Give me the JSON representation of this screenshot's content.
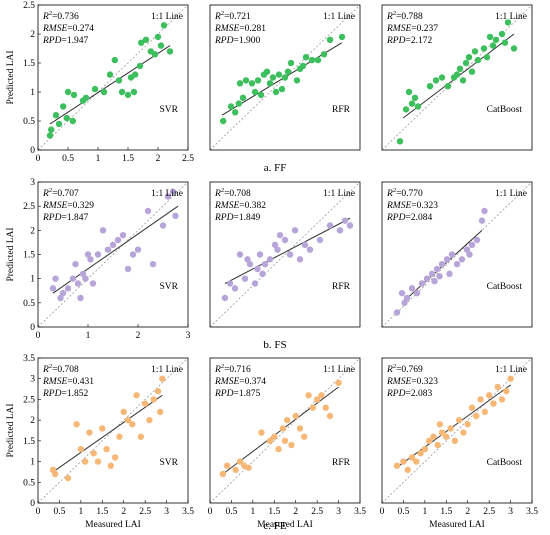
{
  "figure": {
    "row_captions": [
      "a. FF",
      "b. FS",
      "c. FE"
    ],
    "ylabel": "Predicted LAI",
    "xlabel": "Measured LAI",
    "line_label": "1:1 Line"
  },
  "colors": {
    "FF": "#3cbf5c",
    "FS": "#b7a4d8",
    "FE": "#f7b877",
    "fit": "#333333",
    "diag": "#9a9a9a"
  },
  "chart_data": [
    {
      "type": "scatter",
      "row": "FF",
      "model": "SVR",
      "r2": "0.736",
      "rmse": "0.274",
      "rpd": "1.947",
      "xlim": [
        0,
        2.5
      ],
      "ylim": [
        0,
        2.5
      ],
      "xticks": [
        0,
        0.5,
        1,
        1.5,
        2,
        2.5
      ],
      "yticks": [
        0,
        0.5,
        1,
        1.5,
        2,
        2.5
      ],
      "fit": [
        [
          0.2,
          0.45
        ],
        [
          2.2,
          1.8
        ]
      ],
      "x": [
        0.2,
        0.22,
        0.3,
        0.35,
        0.42,
        0.48,
        0.5,
        0.58,
        0.6,
        0.75,
        0.8,
        0.95,
        1.1,
        1.2,
        1.28,
        1.35,
        1.4,
        1.5,
        1.55,
        1.6,
        1.62,
        1.7,
        1.72,
        1.8,
        1.88,
        1.95,
        2.0,
        2.05,
        2.1,
        2.2
      ],
      "y": [
        0.25,
        0.35,
        0.6,
        0.45,
        0.75,
        0.55,
        1.0,
        0.5,
        0.95,
        0.85,
        0.9,
        1.05,
        1.0,
        1.3,
        1.55,
        1.2,
        1.0,
        0.95,
        1.25,
        1.0,
        1.3,
        1.45,
        1.85,
        1.9,
        1.7,
        1.65,
        1.95,
        1.8,
        2.15,
        1.7
      ]
    },
    {
      "type": "scatter",
      "row": "FF",
      "model": "RFR",
      "r2": "0.721",
      "rmse": "0.281",
      "rpd": "1.900",
      "xlim": [
        0,
        2.5
      ],
      "ylim": [
        0,
        2.5
      ],
      "xticks": [],
      "yticks": [],
      "fit": [
        [
          0.2,
          0.6
        ],
        [
          2.2,
          1.85
        ]
      ],
      "x": [
        0.22,
        0.35,
        0.42,
        0.48,
        0.5,
        0.55,
        0.6,
        0.7,
        0.75,
        0.8,
        0.85,
        0.9,
        0.95,
        1.0,
        1.05,
        1.1,
        1.15,
        1.2,
        1.25,
        1.3,
        1.35,
        1.45,
        1.5,
        1.55,
        1.6,
        1.7,
        1.8,
        1.9,
        2.0,
        2.2
      ],
      "y": [
        0.5,
        0.75,
        0.65,
        0.8,
        1.15,
        0.9,
        1.2,
        1.15,
        1.0,
        1.2,
        0.95,
        1.3,
        1.35,
        1.15,
        1.25,
        1.0,
        1.3,
        1.05,
        1.25,
        1.35,
        1.5,
        1.2,
        1.4,
        1.45,
        1.6,
        1.55,
        1.55,
        1.65,
        1.9,
        1.95
      ]
    },
    {
      "type": "scatter",
      "row": "FF",
      "model": "CatBoost",
      "r2": "0.788",
      "rmse": "0.237",
      "rpd": "2.172",
      "xlim": [
        0,
        2.5
      ],
      "ylim": [
        0,
        2.5
      ],
      "xticks": [],
      "yticks": [],
      "fit": [
        [
          0.35,
          0.55
        ],
        [
          2.2,
          2.0
        ]
      ],
      "x": [
        0.3,
        0.4,
        0.45,
        0.5,
        0.55,
        0.6,
        0.8,
        0.9,
        1.0,
        1.1,
        1.2,
        1.25,
        1.3,
        1.35,
        1.4,
        1.45,
        1.5,
        1.55,
        1.6,
        1.7,
        1.75,
        1.8,
        1.85,
        1.9,
        2.0,
        2.05,
        2.1,
        2.2
      ],
      "y": [
        0.15,
        0.7,
        1.0,
        0.8,
        0.9,
        0.75,
        1.1,
        1.2,
        1.25,
        1.1,
        1.25,
        1.3,
        1.4,
        1.2,
        1.5,
        1.6,
        1.35,
        1.7,
        1.55,
        1.75,
        1.6,
        1.95,
        1.8,
        1.9,
        2.0,
        1.85,
        2.2,
        1.75
      ]
    },
    {
      "type": "scatter",
      "row": "FS",
      "model": "SVR",
      "r2": "0.707",
      "rmse": "0.329",
      "rpd": "1.847",
      "xlim": [
        0,
        3
      ],
      "ylim": [
        0,
        3
      ],
      "xticks": [
        0,
        1,
        2,
        3
      ],
      "yticks": [
        0,
        0.5,
        1,
        1.5,
        2,
        2.5,
        3
      ],
      "fit": [
        [
          0.3,
          0.7
        ],
        [
          2.8,
          2.5
        ]
      ],
      "x": [
        0.3,
        0.35,
        0.45,
        0.5,
        0.6,
        0.7,
        0.75,
        0.8,
        0.85,
        0.9,
        0.95,
        1.0,
        1.05,
        1.1,
        1.2,
        1.3,
        1.4,
        1.5,
        1.6,
        1.7,
        1.8,
        1.9,
        2.0,
        2.2,
        2.3,
        2.5,
        2.6,
        2.7,
        2.75
      ],
      "y": [
        0.8,
        1.0,
        0.6,
        0.7,
        0.8,
        1.0,
        1.3,
        0.9,
        0.6,
        1.1,
        1.0,
        1.5,
        1.4,
        0.9,
        1.5,
        2.0,
        1.6,
        1.7,
        1.8,
        1.9,
        1.2,
        1.5,
        1.6,
        2.4,
        1.3,
        2.1,
        2.7,
        2.8,
        2.3
      ]
    },
    {
      "type": "scatter",
      "row": "FS",
      "model": "RFR",
      "r2": "0.708",
      "rmse": "0.382",
      "rpd": "1.849",
      "xlim": [
        0,
        3
      ],
      "ylim": [
        0,
        3
      ],
      "xticks": [],
      "yticks": [],
      "fit": [
        [
          0.3,
          0.9
        ],
        [
          2.8,
          2.25
        ]
      ],
      "x": [
        0.3,
        0.4,
        0.5,
        0.6,
        0.7,
        0.75,
        0.8,
        0.9,
        0.95,
        1.0,
        1.05,
        1.1,
        1.2,
        1.3,
        1.35,
        1.4,
        1.5,
        1.6,
        1.7,
        1.8,
        1.9,
        2.0,
        2.2,
        2.4,
        2.6,
        2.7,
        2.8
      ],
      "y": [
        0.6,
        0.9,
        0.8,
        1.5,
        1.0,
        1.4,
        1.3,
        0.9,
        1.2,
        1.5,
        1.1,
        1.3,
        1.4,
        1.7,
        1.6,
        1.9,
        1.8,
        1.5,
        2.0,
        1.4,
        1.7,
        1.6,
        1.8,
        2.1,
        2.0,
        2.2,
        2.1
      ]
    },
    {
      "type": "scatter",
      "row": "FS",
      "model": "CatBoost",
      "r2": "0.770",
      "rmse": "0.323",
      "rpd": "2.084",
      "xlim": [
        0,
        3
      ],
      "ylim": [
        0,
        3
      ],
      "xticks": [],
      "yticks": [],
      "fit": [
        [
          0.4,
          0.5
        ],
        [
          2.0,
          2.0
        ]
      ],
      "x": [
        0.3,
        0.4,
        0.45,
        0.5,
        0.6,
        0.7,
        0.8,
        0.9,
        1.0,
        1.05,
        1.1,
        1.15,
        1.2,
        1.3,
        1.35,
        1.4,
        1.5,
        1.6,
        1.7,
        1.75,
        1.8,
        1.9,
        2.0,
        2.05
      ],
      "y": [
        0.3,
        0.7,
        0.5,
        0.6,
        0.8,
        0.7,
        0.9,
        1.0,
        1.1,
        0.95,
        1.2,
        1.05,
        1.3,
        1.4,
        1.1,
        1.5,
        1.3,
        1.4,
        1.6,
        1.5,
        1.7,
        1.8,
        2.2,
        2.4
      ]
    },
    {
      "type": "scatter",
      "row": "FE",
      "model": "SVR",
      "r2": "0.708",
      "rmse": "0.431",
      "rpd": "1.852",
      "xlim": [
        0,
        3.5
      ],
      "ylim": [
        0,
        3.5
      ],
      "xticks": [
        0,
        0.5,
        1,
        1.5,
        2,
        2.5,
        3,
        3.5
      ],
      "yticks": [
        0,
        0.5,
        1,
        1.5,
        2,
        2.5,
        3,
        3.5
      ],
      "fit": [
        [
          0.35,
          0.75
        ],
        [
          2.9,
          2.6
        ]
      ],
      "x": [
        0.35,
        0.4,
        0.7,
        0.9,
        1.0,
        1.1,
        1.2,
        1.3,
        1.4,
        1.5,
        1.6,
        1.7,
        1.8,
        1.9,
        2.0,
        2.1,
        2.2,
        2.3,
        2.4,
        2.5,
        2.6,
        2.7,
        2.8,
        2.85,
        2.9
      ],
      "y": [
        0.8,
        0.7,
        0.6,
        1.9,
        1.3,
        1.0,
        1.7,
        1.2,
        1.0,
        1.8,
        1.3,
        0.9,
        1.1,
        1.6,
        2.2,
        2.0,
        1.9,
        2.6,
        1.6,
        2.4,
        2.0,
        2.5,
        2.7,
        2.2,
        3.0
      ]
    },
    {
      "type": "scatter",
      "row": "FE",
      "model": "RFR",
      "r2": "0.716",
      "rmse": "0.374",
      "rpd": "1.875",
      "xlim": [
        0,
        3.5
      ],
      "ylim": [
        0,
        3.5
      ],
      "xticks": [
        0,
        0.5,
        1,
        1.5,
        2,
        2.5,
        3,
        3.5
      ],
      "yticks": [],
      "fit": [
        [
          0.3,
          0.7
        ],
        [
          3.0,
          2.8
        ]
      ],
      "x": [
        0.3,
        0.4,
        0.6,
        0.7,
        0.8,
        0.9,
        1.2,
        1.4,
        1.5,
        1.6,
        1.7,
        1.75,
        1.8,
        1.9,
        2.0,
        2.1,
        2.2,
        2.3,
        2.4,
        2.5,
        2.6,
        2.7,
        2.8,
        3.0
      ],
      "y": [
        0.7,
        0.9,
        0.8,
        1.0,
        0.9,
        0.85,
        1.7,
        1.5,
        1.6,
        1.3,
        1.8,
        1.5,
        2.0,
        1.4,
        2.1,
        1.8,
        1.6,
        2.6,
        2.3,
        2.5,
        2.6,
        2.3,
        2.1,
        2.9
      ]
    },
    {
      "type": "scatter",
      "row": "FE",
      "model": "CatBoost",
      "r2": "0.769",
      "rmse": "0.323",
      "rpd": "2.083",
      "xlim": [
        0,
        3.5
      ],
      "ylim": [
        0,
        3.5
      ],
      "xticks": [
        0,
        0.5,
        1,
        1.5,
        2,
        2.5,
        3,
        3.5
      ],
      "yticks": [],
      "fit": [
        [
          0.4,
          0.9
        ],
        [
          3.0,
          2.85
        ]
      ],
      "x": [
        0.35,
        0.5,
        0.6,
        0.7,
        0.8,
        0.9,
        1.0,
        1.1,
        1.2,
        1.3,
        1.35,
        1.4,
        1.5,
        1.6,
        1.7,
        1.8,
        1.9,
        2.0,
        2.1,
        2.2,
        2.3,
        2.4,
        2.5,
        2.6,
        2.7,
        2.8,
        2.9,
        3.0
      ],
      "y": [
        0.9,
        1.0,
        0.8,
        1.1,
        1.0,
        1.2,
        1.3,
        1.5,
        1.6,
        1.4,
        1.9,
        1.7,
        1.6,
        1.8,
        1.5,
        2.0,
        1.7,
        1.9,
        2.3,
        2.1,
        2.5,
        2.2,
        2.6,
        2.4,
        2.8,
        2.5,
        2.7,
        3.0
      ]
    }
  ]
}
